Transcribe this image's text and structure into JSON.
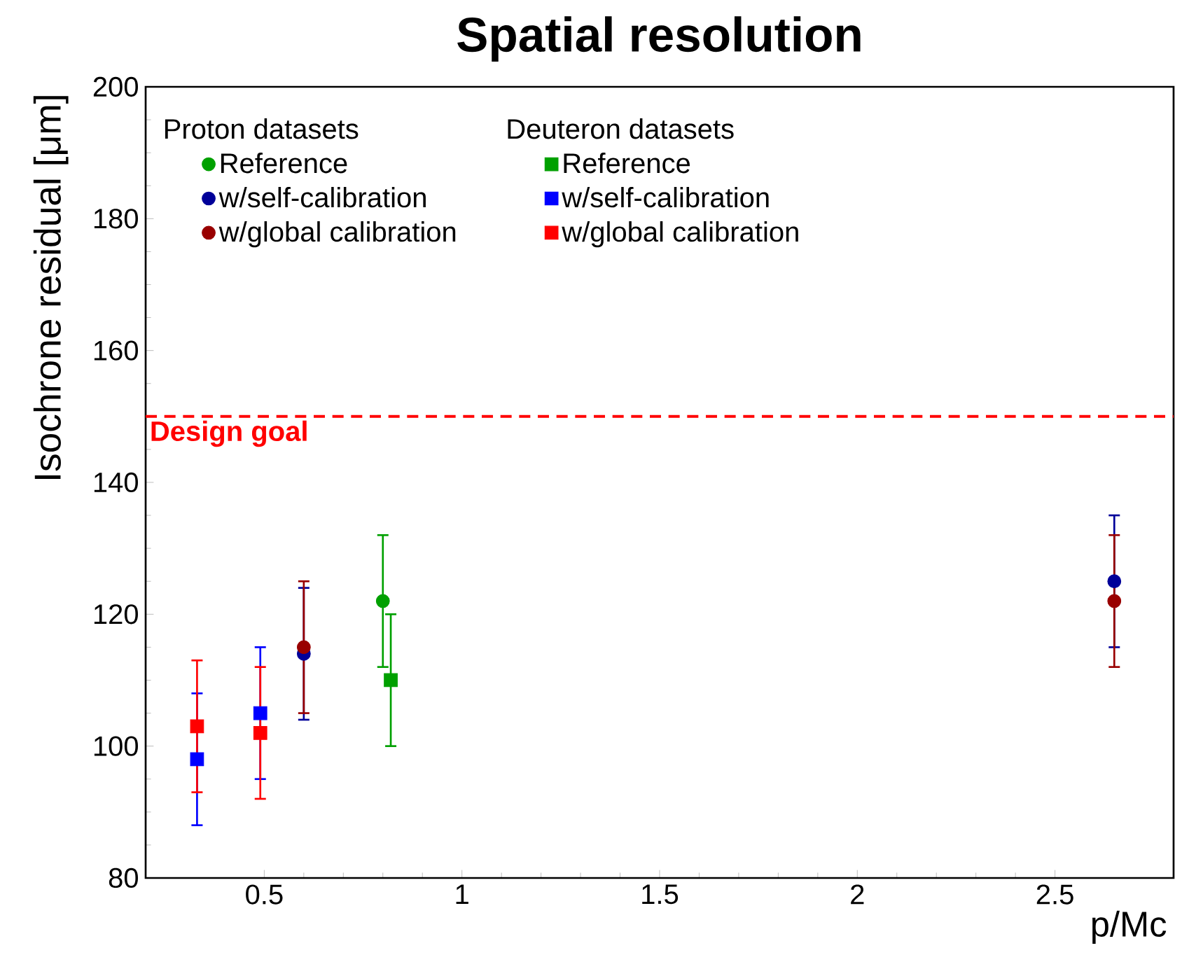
{
  "chart_data": {
    "type": "scatter",
    "title": "Spatial resolution",
    "xlabel": "p/Mc",
    "ylabel": "Isochrone residual [μm]",
    "xlim": [
      0.2,
      2.8
    ],
    "xticks": [
      0.5,
      1,
      1.5,
      2,
      2.5
    ],
    "ylim": [
      80,
      200
    ],
    "yticks": [
      80,
      100,
      120,
      140,
      160,
      180,
      200
    ],
    "annotations": [
      "Proton datasets",
      "Deuteron datasets"
    ],
    "ref_lines": [
      {
        "axis": "y",
        "value": 150,
        "label": "Design goal",
        "color": "#ff0000",
        "line_style": "dashed"
      }
    ],
    "legend": "top left",
    "grid": false,
    "series": [
      {
        "name": "Reference",
        "color": "#00a000",
        "marker": "circle",
        "x": [
          0.8
        ],
        "values": [
          122
        ],
        "errors": [
          10
        ]
      },
      {
        "name": "Reference",
        "color": "#00a000",
        "marker": "square",
        "x": [
          0.82
        ],
        "values": [
          110
        ],
        "errors": [
          10
        ]
      },
      {
        "name": "w/self-calibration",
        "color": "#000099",
        "marker": "circle",
        "x": [
          0.6,
          2.65
        ],
        "values": [
          114,
          125
        ],
        "errors": [
          10,
          10
        ]
      },
      {
        "name": "w/self-calibration",
        "color": "#0000ff",
        "marker": "square",
        "x": [
          0.33,
          0.49
        ],
        "values": [
          98,
          105
        ],
        "errors": [
          10,
          10
        ]
      },
      {
        "name": "w/global calibration",
        "color": "#990000",
        "marker": "circle",
        "x": [
          0.6,
          2.65
        ],
        "values": [
          115,
          122
        ],
        "errors": [
          10,
          10
        ]
      },
      {
        "name": "w/global calibration",
        "color": "#ff0000",
        "marker": "square",
        "x": [
          0.33,
          0.49
        ],
        "values": [
          103,
          102
        ],
        "errors": [
          10,
          10
        ]
      }
    ]
  }
}
